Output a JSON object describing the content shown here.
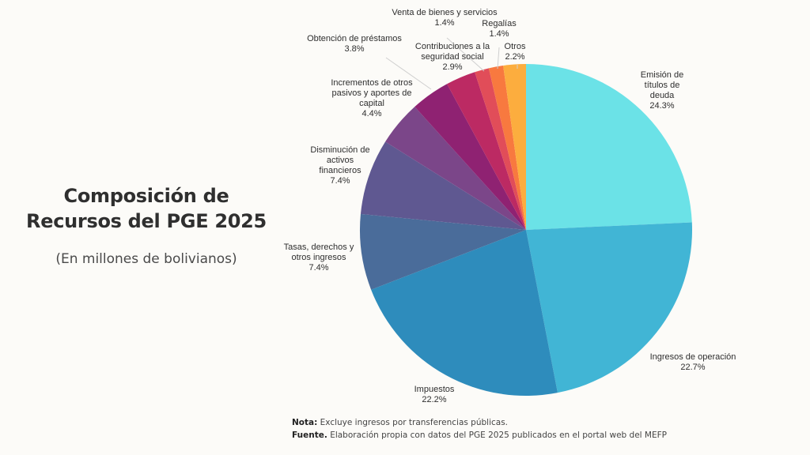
{
  "header": {
    "title_line1": "Composición de",
    "title_line2": "Recursos del PGE 2025",
    "subtitle": "(En millones de bolivianos)"
  },
  "footer": {
    "nota_label": "Nota:",
    "nota_text": " Excluye ingresos por transferencias públicas.",
    "fuente_label": "Fuente.",
    "fuente_text": " Elaboración propia con datos del PGE 2025 publicados en el portal web del MEFP"
  },
  "chart_data": {
    "type": "pie",
    "title": "Composición de Recursos del PGE 2025",
    "subtitle": "(En millones de bolivianos)",
    "start": "12 o'clock",
    "direction": "clockwise",
    "slices": [
      {
        "label": [
          "Emisión de",
          "títulos de",
          "deuda"
        ],
        "name": "Emisión de títulos de deuda",
        "value": 24.3,
        "value_label": "24.3%",
        "color": "#6be2e7"
      },
      {
        "label": [
          "Ingresos de operación"
        ],
        "name": "Ingresos de operación",
        "value": 22.7,
        "value_label": "22.7%",
        "color": "#41b5d5"
      },
      {
        "label": [
          "Impuestos"
        ],
        "name": "Impuestos",
        "value": 22.2,
        "value_label": "22.2%",
        "color": "#2e8cbc"
      },
      {
        "label": [
          "Tasas, derechos y",
          "otros ingresos"
        ],
        "name": "Tasas, derechos y otros ingresos",
        "value": 7.4,
        "value_label": "7.4%",
        "color": "#4a6c9a"
      },
      {
        "label": [
          "Disminución de",
          "activos",
          "financieros"
        ],
        "name": "Disminución de activos financieros",
        "value": 7.4,
        "value_label": "7.4%",
        "color": "#5f5891"
      },
      {
        "label": [
          "Incrementos de otros",
          "pasivos y aportes de",
          "capital"
        ],
        "name": "Incrementos de otros pasivos y aportes de capital",
        "value": 4.4,
        "value_label": "4.4%",
        "color": "#7b4689"
      },
      {
        "label": [
          "Obtención de préstamos"
        ],
        "name": "Obtención de préstamos",
        "value": 3.8,
        "value_label": "3.8%",
        "color": "#8f2272"
      },
      {
        "label": [
          "Contribuciones a la",
          "seguridad social"
        ],
        "name": "Contribuciones a la seguridad social",
        "value": 2.9,
        "value_label": "2.9%",
        "color": "#bc2a63"
      },
      {
        "label": [
          "Venta de bienes y servicios"
        ],
        "name": "Venta de bienes y servicios",
        "value": 1.4,
        "value_label": "1.4%",
        "color": "#e14d59"
      },
      {
        "label": [
          "Regalías"
        ],
        "name": "Regalías",
        "value": 1.4,
        "value_label": "1.4%",
        "color": "#f8793f"
      },
      {
        "label": [
          "Otros"
        ],
        "name": "Otros",
        "value": 2.2,
        "value_label": "2.2%",
        "color": "#fcad3e"
      }
    ]
  }
}
